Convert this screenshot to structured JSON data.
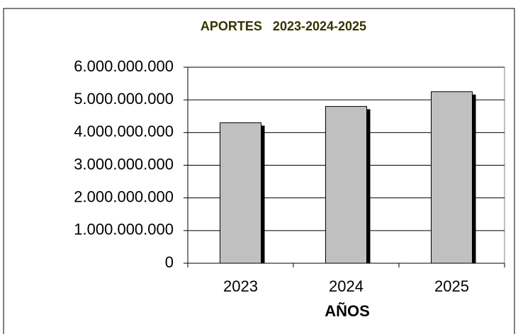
{
  "chart_data": {
    "type": "bar",
    "title": "APORTES   2023-2024-2025",
    "x_label": "AÑOS",
    "categories": [
      "2023",
      "2024",
      "2025"
    ],
    "values": [
      4300000000,
      4800000000,
      5250000000
    ],
    "color": "#c0c0c0",
    "ylim": [
      0,
      6000000000
    ],
    "yticks": [
      0,
      {
        "value": 1000000000,
        "label": "1.000.000.000"
      },
      {
        "value": 2000000000,
        "label": "2.000.000.000"
      },
      {
        "value": 3000000000,
        "label": "3.000.000.000"
      },
      {
        "value": 4000000000,
        "label": "4.000.000.000"
      },
      {
        "value": 5000000000,
        "label": "5.000.000.000"
      },
      {
        "value": 6000000000,
        "label": "6.000.000.000"
      }
    ],
    "grid": true
  }
}
